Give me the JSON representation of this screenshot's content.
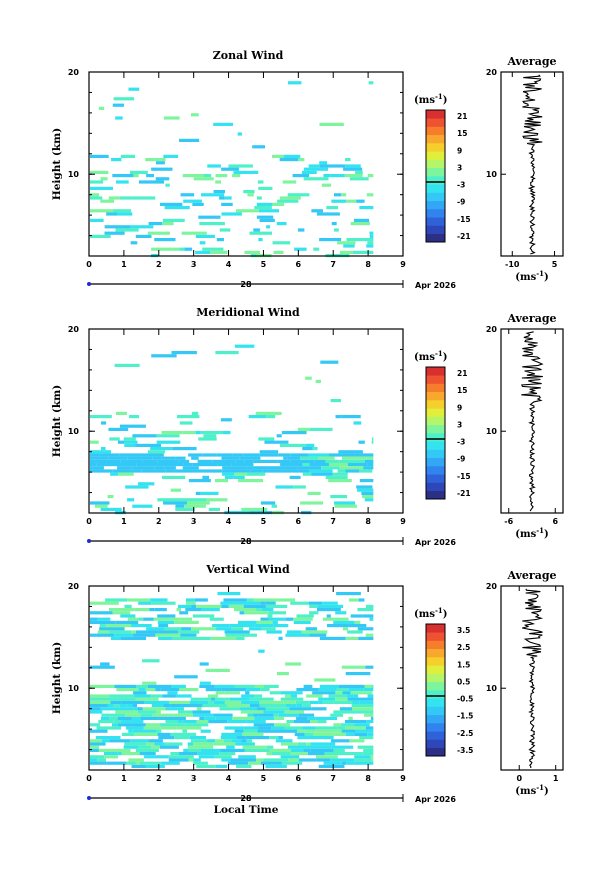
{
  "chart_data": [
    {
      "type": "heatmap",
      "title": "Zonal Wind",
      "ylabel": "Height (km)",
      "xlabel": "",
      "x_ticks": [
        "0",
        "1",
        "2",
        "3",
        "4",
        "5",
        "6",
        "7",
        "8",
        "9"
      ],
      "y_ticks": [
        "20",
        "10"
      ],
      "xlim": [
        0,
        9
      ],
      "ylim": [
        2,
        20
      ],
      "day_label": "28",
      "date_label": "Apr 2026",
      "colorbar": {
        "unit": "(ms",
        "unit_exp": "-1",
        "unit_close": ")",
        "ticks": [
          "21",
          "15",
          "9",
          "3",
          "-3",
          "-9",
          "-15",
          "-21"
        ],
        "zero_marker": 0
      },
      "average_profile": {
        "title": "Average",
        "x_ticks": [
          "-10",
          "5"
        ],
        "xlim": [
          -14,
          8
        ],
        "y_ticks": [
          "20",
          "10"
        ],
        "unit": "(ms",
        "unit_exp": "-1",
        "unit_close": ")"
      }
    },
    {
      "type": "heatmap",
      "title": "Meridional Wind",
      "ylabel": "Height (km)",
      "xlabel": "",
      "x_ticks": [
        "0",
        "1",
        "2",
        "3",
        "4",
        "5",
        "6",
        "7",
        "8",
        "9"
      ],
      "y_ticks": [
        "20",
        "10"
      ],
      "xlim": [
        0,
        9
      ],
      "ylim": [
        2,
        20
      ],
      "day_label": "28",
      "date_label": "Apr 2026",
      "colorbar": {
        "unit": "(ms",
        "unit_exp": "-1",
        "unit_close": ")",
        "ticks": [
          "21",
          "15",
          "9",
          "3",
          "-3",
          "-9",
          "-15",
          "-21"
        ],
        "zero_marker": 0
      },
      "average_profile": {
        "title": "Average",
        "x_ticks": [
          "-6",
          "6"
        ],
        "xlim": [
          -8,
          8
        ],
        "y_ticks": [
          "20",
          "10"
        ],
        "unit": "(ms",
        "unit_exp": "-1",
        "unit_close": ")"
      }
    },
    {
      "type": "heatmap",
      "title": "Vertical Wind",
      "ylabel": "Height (km)",
      "xlabel": "Local Time",
      "x_ticks": [
        "0",
        "1",
        "2",
        "3",
        "4",
        "5",
        "6",
        "7",
        "8",
        "9"
      ],
      "y_ticks": [
        "20",
        "10"
      ],
      "xlim": [
        0,
        9
      ],
      "ylim": [
        2,
        20
      ],
      "day_label": "28",
      "date_label": "Apr 2026",
      "colorbar": {
        "unit": "(ms",
        "unit_exp": "-1",
        "unit_close": ")",
        "ticks": [
          "3.5",
          "2.5",
          "1.5",
          "0.5",
          "-0.5",
          "-1.5",
          "-2.5",
          "-3.5"
        ],
        "zero_marker": 0
      },
      "average_profile": {
        "title": "Average",
        "x_ticks": [
          "0",
          "1"
        ],
        "xlim": [
          -0.5,
          1.2
        ],
        "y_ticks": [
          "20",
          "10"
        ],
        "unit": "(ms",
        "unit_exp": "-1",
        "unit_close": ")"
      }
    }
  ]
}
